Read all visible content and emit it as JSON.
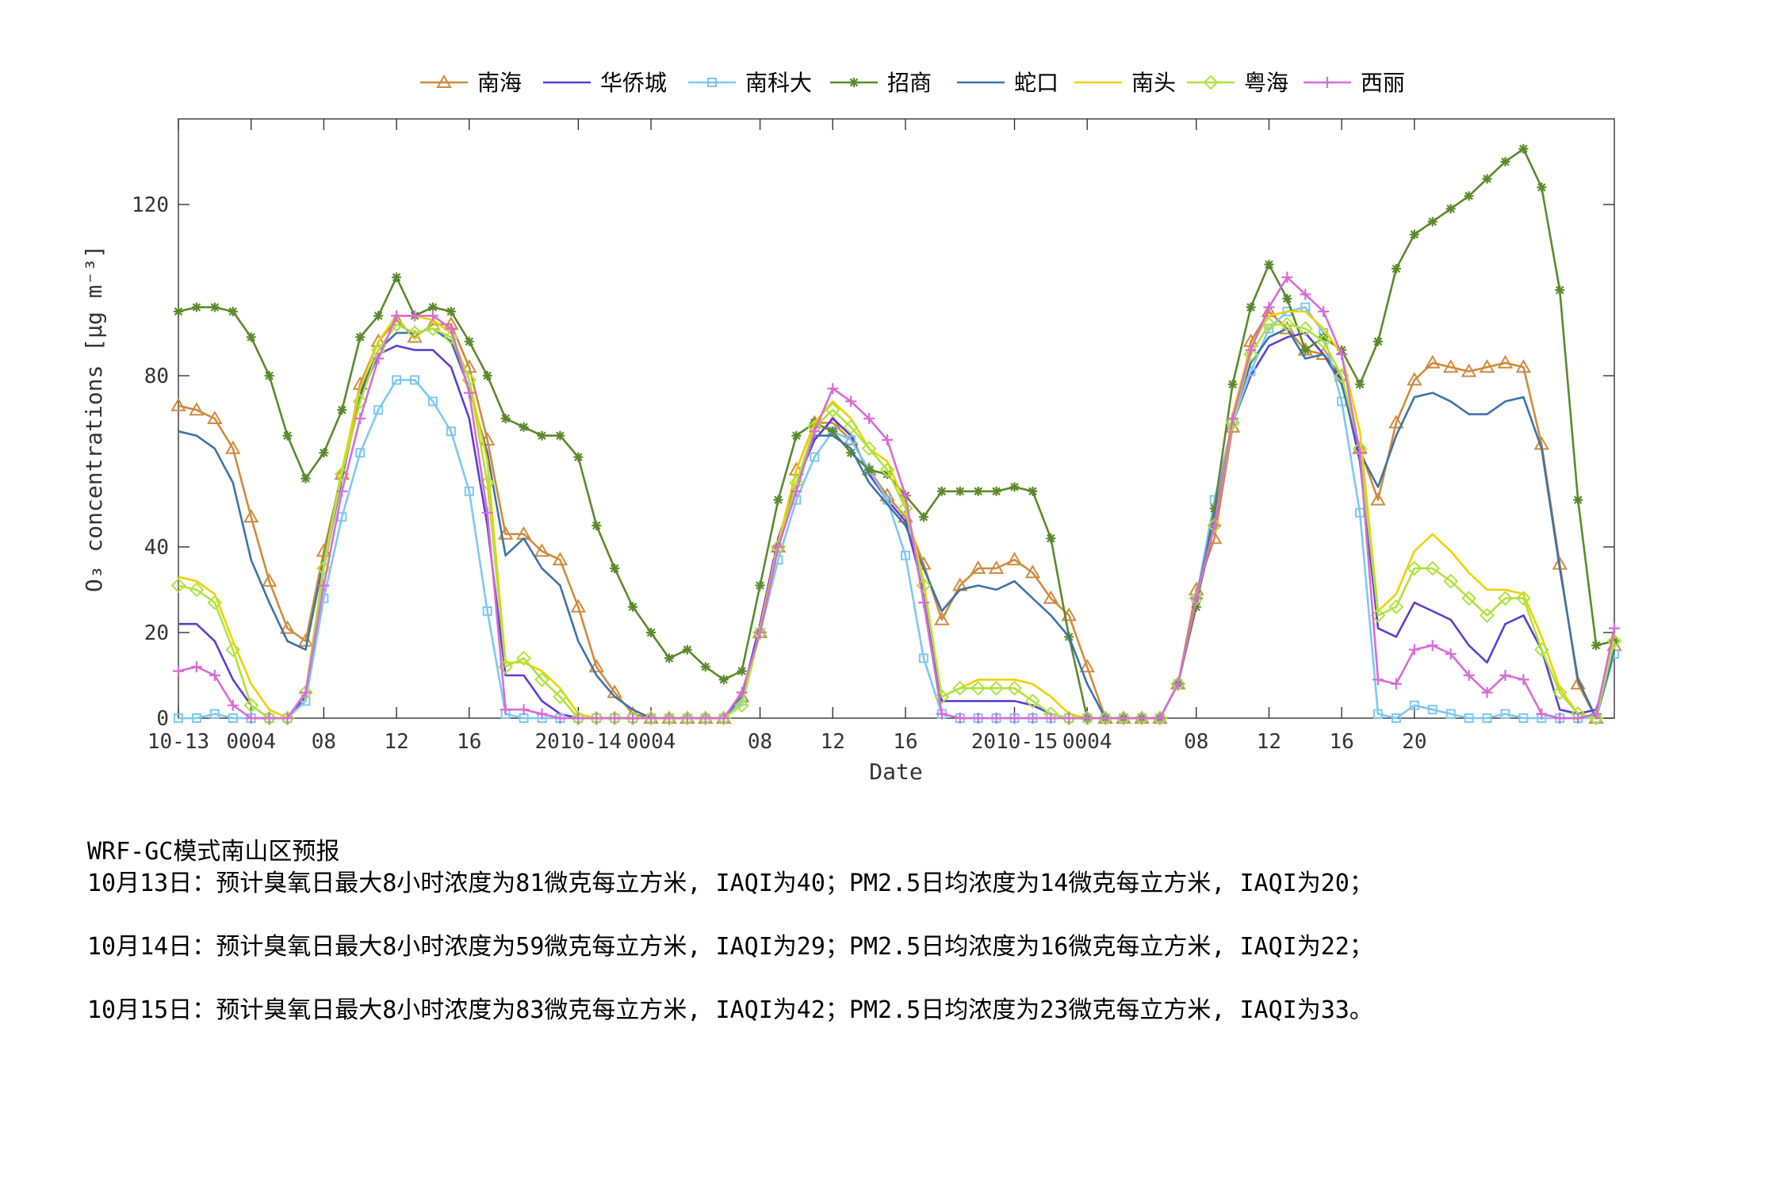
{
  "chart_data": {
    "type": "line",
    "xlabel": "Date",
    "ylabel": "O₃ concentrations [μg m⁻³]",
    "ylim": [
      0,
      140
    ],
    "yticks": [
      0,
      20,
      40,
      80,
      120
    ],
    "grid": false,
    "legend": "top-center, horizontal",
    "x_hours": [
      0,
      1,
      2,
      3,
      4,
      5,
      6,
      7,
      8,
      9,
      10,
      11,
      12,
      13,
      14,
      15,
      16,
      17,
      18,
      19,
      20,
      21,
      22,
      23,
      24,
      25,
      26,
      27,
      28,
      29,
      30,
      31,
      32,
      33,
      34,
      35,
      36,
      37,
      38,
      39,
      40,
      41,
      42,
      43,
      44,
      45,
      46,
      47,
      48,
      49,
      50,
      51,
      52,
      53,
      54,
      55,
      56,
      57,
      58,
      59,
      60,
      61,
      62,
      63,
      64,
      65,
      66,
      67,
      68,
      69,
      70,
      71,
      72,
      73,
      74,
      75,
      76,
      77,
      78,
      79
    ],
    "xticks": [
      {
        "h": 0,
        "label": "10-13"
      },
      {
        "h": 4,
        "label": "0004"
      },
      {
        "h": 8,
        "label": "08"
      },
      {
        "h": 12,
        "label": "12"
      },
      {
        "h": 16,
        "label": "16"
      },
      {
        "h": 22,
        "label": "2010-14"
      },
      {
        "h": 26,
        "label": "0004"
      },
      {
        "h": 32,
        "label": "08"
      },
      {
        "h": 36,
        "label": "12"
      },
      {
        "h": 40,
        "label": "16"
      },
      {
        "h": 46,
        "label": "2010-15"
      },
      {
        "h": 50,
        "label": "0004"
      },
      {
        "h": 56,
        "label": "08"
      },
      {
        "h": 60,
        "label": "12"
      },
      {
        "h": 64,
        "label": "16"
      },
      {
        "h": 68,
        "label": "20"
      }
    ],
    "series": [
      {
        "name": "南海",
        "color": "#D08A3C",
        "marker": "triangle",
        "values": [
          73,
          72,
          70,
          63,
          47,
          32,
          21,
          18,
          39,
          57,
          78,
          88,
          93,
          89,
          92,
          92,
          82,
          65,
          43,
          43,
          39,
          37,
          26,
          12,
          6,
          1,
          0,
          0,
          0,
          0,
          0,
          5,
          20,
          40,
          58,
          69,
          69,
          65,
          58,
          52,
          47,
          36,
          23,
          31,
          35,
          35,
          37,
          34,
          28,
          24,
          12,
          0,
          0,
          0,
          0,
          8,
          30,
          42,
          68,
          88,
          95,
          91,
          86,
          85,
          80,
          63,
          51,
          69,
          79,
          83,
          82,
          81,
          82,
          83,
          82,
          64,
          36,
          8,
          0,
          17
        ]
      },
      {
        "name": "华侨城",
        "color": "#5B3FCF",
        "marker": "none",
        "values": [
          22,
          22,
          18,
          9,
          3,
          0,
          0,
          5,
          35,
          56,
          75,
          85,
          87,
          86,
          86,
          82,
          70,
          45,
          10,
          10,
          4,
          1,
          0,
          0,
          0,
          0,
          0,
          0,
          0,
          0,
          0,
          5,
          22,
          42,
          55,
          65,
          70,
          66,
          57,
          51,
          46,
          30,
          4,
          4,
          4,
          4,
          4,
          3,
          1,
          0,
          0,
          0,
          0,
          0,
          0,
          8,
          27,
          45,
          69,
          80,
          87,
          89,
          90,
          85,
          79,
          60,
          21,
          19,
          27,
          25,
          23,
          17,
          13,
          22,
          24,
          16,
          2,
          1,
          2,
          15
        ]
      },
      {
        "name": "南科大",
        "color": "#7EC8F0",
        "marker": "square",
        "values": [
          0,
          0,
          1,
          0,
          0,
          0,
          0,
          4,
          28,
          47,
          62,
          72,
          79,
          79,
          74,
          67,
          53,
          25,
          1,
          0,
          0,
          0,
          0,
          0,
          0,
          0,
          0,
          0,
          0,
          0,
          0,
          4,
          20,
          37,
          51,
          61,
          67,
          65,
          58,
          51,
          38,
          14,
          1,
          0,
          0,
          0,
          0,
          0,
          0,
          0,
          0,
          0,
          0,
          0,
          0,
          8,
          28,
          51,
          69,
          81,
          91,
          95,
          96,
          90,
          74,
          48,
          1,
          0,
          3,
          2,
          1,
          0,
          0,
          1,
          0,
          0,
          0,
          0,
          0,
          15
        ]
      },
      {
        "name": "招商",
        "color": "#5A8A2A",
        "marker": "star",
        "values": [
          95,
          96,
          96,
          95,
          89,
          80,
          66,
          56,
          62,
          72,
          89,
          94,
          103,
          94,
          96,
          95,
          88,
          80,
          70,
          68,
          66,
          66,
          61,
          45,
          35,
          26,
          20,
          14,
          16,
          12,
          9,
          11,
          31,
          51,
          66,
          69,
          67,
          62,
          58,
          57,
          52,
          47,
          53,
          53,
          53,
          53,
          54,
          53,
          42,
          19,
          0,
          0,
          0,
          0,
          0,
          8,
          26,
          49,
          78,
          96,
          106,
          98,
          86,
          89,
          86,
          78,
          88,
          105,
          113,
          116,
          119,
          122,
          126,
          130,
          133,
          124,
          100,
          51,
          17,
          18
        ]
      },
      {
        "name": "蛇口",
        "color": "#3D73A8",
        "marker": "none",
        "values": [
          67,
          66,
          63,
          55,
          37,
          27,
          18,
          16,
          37,
          58,
          76,
          86,
          90,
          90,
          91,
          88,
          77,
          62,
          38,
          42,
          35,
          31,
          18,
          10,
          5,
          2,
          0,
          0,
          0,
          0,
          0,
          5,
          20,
          40,
          55,
          66,
          66,
          63,
          55,
          50,
          45,
          35,
          25,
          30,
          31,
          30,
          32,
          28,
          24,
          19,
          8,
          0,
          0,
          0,
          0,
          8,
          28,
          47,
          70,
          83,
          89,
          91,
          84,
          85,
          78,
          62,
          54,
          66,
          75,
          76,
          74,
          71,
          71,
          74,
          75,
          63,
          35,
          9,
          0,
          16
        ]
      },
      {
        "name": "南头",
        "color": "#F0D000",
        "marker": "none",
        "values": [
          33,
          32,
          29,
          18,
          8,
          2,
          0,
          6,
          36,
          58,
          77,
          88,
          94,
          94,
          93,
          90,
          79,
          60,
          13,
          13,
          11,
          7,
          1,
          0,
          0,
          0,
          0,
          0,
          0,
          0,
          0,
          3,
          21,
          41,
          58,
          69,
          74,
          70,
          63,
          60,
          50,
          32,
          5,
          7,
          9,
          9,
          9,
          8,
          5,
          1,
          0,
          0,
          0,
          0,
          0,
          8,
          28,
          45,
          71,
          87,
          94,
          95,
          95,
          91,
          85,
          67,
          25,
          29,
          39,
          43,
          39,
          34,
          30,
          30,
          29,
          19,
          7,
          1,
          0,
          20
        ]
      },
      {
        "name": "粤海",
        "color": "#AEE33C",
        "marker": "diamond",
        "values": [
          31,
          30,
          27,
          16,
          3,
          0,
          0,
          6,
          35,
          57,
          74,
          86,
          92,
          90,
          91,
          89,
          79,
          55,
          12,
          14,
          9,
          5,
          0,
          0,
          0,
          0,
          0,
          0,
          0,
          0,
          0,
          3,
          20,
          40,
          55,
          68,
          72,
          68,
          63,
          58,
          49,
          31,
          5,
          7,
          7,
          7,
          7,
          4,
          1,
          0,
          0,
          0,
          0,
          0,
          0,
          8,
          28,
          45,
          69,
          85,
          92,
          92,
          91,
          88,
          80,
          63,
          24,
          26,
          35,
          35,
          32,
          28,
          24,
          28,
          28,
          16,
          6,
          1,
          0,
          18
        ]
      },
      {
        "name": "西丽",
        "color": "#D86BD8",
        "marker": "plus",
        "values": [
          11,
          12,
          10,
          3,
          0,
          0,
          0,
          6,
          31,
          53,
          70,
          84,
          94,
          94,
          94,
          91,
          76,
          48,
          2,
          2,
          1,
          0,
          0,
          0,
          0,
          0,
          0,
          0,
          0,
          0,
          0,
          6,
          20,
          40,
          53,
          67,
          77,
          74,
          70,
          65,
          52,
          27,
          1,
          0,
          0,
          0,
          0,
          0,
          0,
          0,
          0,
          0,
          0,
          0,
          0,
          8,
          28,
          45,
          70,
          86,
          96,
          103,
          99,
          95,
          85,
          62,
          9,
          8,
          16,
          17,
          15,
          10,
          6,
          10,
          9,
          1,
          0,
          0,
          1,
          21
        ]
      }
    ]
  },
  "forecast": {
    "title": "WRF-GC模式南山区预报",
    "lines": [
      "10月13日：预计臭氧日最大8小时浓度为81微克每立方米, IAQI为40；PM2.5日均浓度为14微克每立方米, IAQI为20；",
      "10月14日：预计臭氧日最大8小时浓度为59微克每立方米, IAQI为29；PM2.5日均浓度为16微克每立方米, IAQI为22；",
      "10月15日：预计臭氧日最大8小时浓度为83微克每立方米, IAQI为42；PM2.5日均浓度为23微克每立方米, IAQI为33。"
    ]
  }
}
